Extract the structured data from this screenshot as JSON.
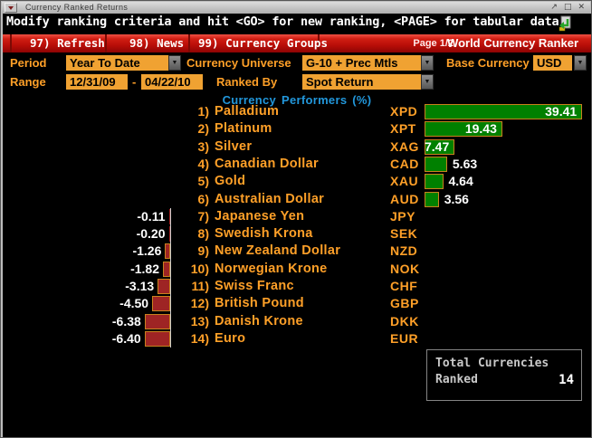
{
  "window": {
    "title": "Currency Ranked Returns",
    "controls": {
      "restore": "↗",
      "maximize": "□",
      "close": "✕"
    }
  },
  "message_bar": {
    "text": "Modify ranking criteria and hit <GO> for new ranking, <PAGE> for tabular data"
  },
  "toolbar": {
    "items": [
      {
        "label": "97) Refresh"
      },
      {
        "label": "98) News"
      },
      {
        "label": "99) Currency Groups"
      }
    ],
    "page_indicator": "Page 1/2",
    "app_title": "World Currency Ranker"
  },
  "form": {
    "period": {
      "label": "Period",
      "value": "Year To Date"
    },
    "currency_universe": {
      "label": "Currency Universe",
      "value": "G-10 + Prec Mtls"
    },
    "base_currency": {
      "label": "Base Currency",
      "value": "USD"
    },
    "range": {
      "label": "Range",
      "start": "12/31/09",
      "separator": "-",
      "end": "04/22/10"
    },
    "ranked_by": {
      "label": "Ranked By",
      "value": "Spot Return"
    }
  },
  "section_header": "Currency Performers  (%)",
  "chart_data": {
    "type": "bar",
    "orientation": "horizontal",
    "title": "Currency Performers (%)",
    "unit": "%",
    "xlim": [
      -8,
      42
    ],
    "positive_color": "#008000",
    "negative_color": "#9E2424",
    "bar_border_color": "#C8821E",
    "entries": [
      {
        "rank": 1,
        "name": "Palladium",
        "ticker": "XPD",
        "value": 39.41
      },
      {
        "rank": 2,
        "name": "Platinum",
        "ticker": "XPT",
        "value": 19.43
      },
      {
        "rank": 3,
        "name": "Silver",
        "ticker": "XAG",
        "value": 7.47
      },
      {
        "rank": 4,
        "name": "Canadian Dollar",
        "ticker": "CAD",
        "value": 5.63
      },
      {
        "rank": 5,
        "name": "Gold",
        "ticker": "XAU",
        "value": 4.64
      },
      {
        "rank": 6,
        "name": "Australian Dollar",
        "ticker": "AUD",
        "value": 3.56
      },
      {
        "rank": 7,
        "name": "Japanese Yen",
        "ticker": "JPY",
        "value": -0.11
      },
      {
        "rank": 8,
        "name": "Swedish Krona",
        "ticker": "SEK",
        "value": -0.2
      },
      {
        "rank": 9,
        "name": "New Zealand Dollar",
        "ticker": "NZD",
        "value": -1.26
      },
      {
        "rank": 10,
        "name": "Norwegian Krone",
        "ticker": "NOK",
        "value": -1.82
      },
      {
        "rank": 11,
        "name": "Swiss Franc",
        "ticker": "CHF",
        "value": -3.13
      },
      {
        "rank": 12,
        "name": "British Pound",
        "ticker": "GBP",
        "value": -4.5
      },
      {
        "rank": 13,
        "name": "Danish Krone",
        "ticker": "DKK",
        "value": -6.38
      },
      {
        "rank": 14,
        "name": "Euro",
        "ticker": "EUR",
        "value": -6.4
      }
    ]
  },
  "summary_box": {
    "line1": "Total Currencies",
    "line2": "Ranked",
    "value": "14"
  },
  "colors": {
    "amber": "#FFA028",
    "field_background": "#F0A232",
    "positive_green": "#008000",
    "negative_red": "#9E2424",
    "bar_border": "#C8821E",
    "header_blue": "#2297DB",
    "toolbar_red": "#C01414",
    "value_text": "#FFFFFF"
  }
}
